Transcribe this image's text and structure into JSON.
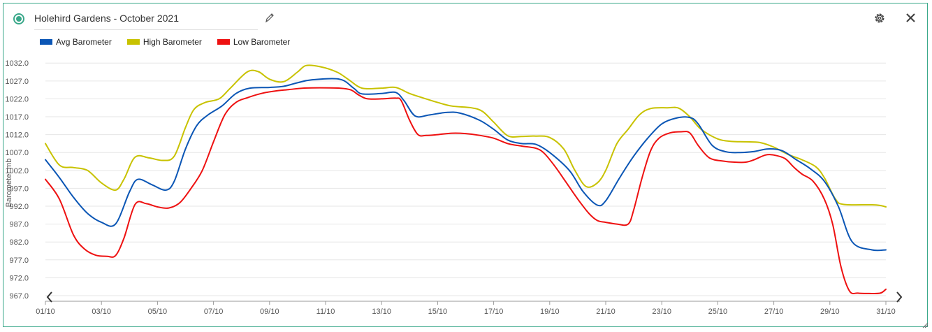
{
  "widget": {
    "title": "Holehird Gardens - October 2021",
    "accent_color": "#3aa88a",
    "icons": [
      "status-dot-icon",
      "pencil-icon",
      "gear-icon",
      "close-icon",
      "chevron-left-icon",
      "chevron-right-icon",
      "resize-grip-icon"
    ]
  },
  "chart_data": {
    "type": "line",
    "title": "",
    "xlabel": "",
    "ylabel": "Barometer mb",
    "ylim": [
      967,
      1034
    ],
    "ytick_labels": [
      "967.0",
      "972.0",
      "977.0",
      "982.0",
      "987.0",
      "992.0",
      "997.0",
      "1002.0",
      "1007.0",
      "1012.0",
      "1017.0",
      "1022.0",
      "1027.0",
      "1032.0"
    ],
    "xtick_labels": [
      "01/10",
      "03/10",
      "05/10",
      "07/10",
      "09/10",
      "11/10",
      "13/10",
      "15/10",
      "17/10",
      "19/10",
      "21/10",
      "23/10",
      "25/10",
      "27/10",
      "29/10",
      "31/10"
    ],
    "grid": true,
    "legend_position": "top-left",
    "series": [
      {
        "name": "Avg Barometer",
        "color": "#0b56b5",
        "points": [
          [
            1,
            1005
          ],
          [
            1.5,
            1000
          ],
          [
            2,
            994.5
          ],
          [
            2.5,
            990
          ],
          [
            3,
            987.5
          ],
          [
            3.5,
            987
          ],
          [
            4,
            996
          ],
          [
            4.3,
            999.5
          ],
          [
            4.8,
            998
          ],
          [
            5.3,
            996.5
          ],
          [
            5.6,
            999
          ],
          [
            6,
            1008
          ],
          [
            6.4,
            1014.5
          ],
          [
            6.8,
            1017.5
          ],
          [
            7.3,
            1020
          ],
          [
            7.8,
            1023.5
          ],
          [
            8.3,
            1025
          ],
          [
            9,
            1025.2
          ],
          [
            9.5,
            1025.5
          ],
          [
            10,
            1026.5
          ],
          [
            10.5,
            1027.3
          ],
          [
            11.5,
            1027.5
          ],
          [
            12,
            1025
          ],
          [
            12.3,
            1023.4
          ],
          [
            13,
            1023.5
          ],
          [
            13.5,
            1023.8
          ],
          [
            13.8,
            1021.5
          ],
          [
            14.2,
            1017.2
          ],
          [
            14.7,
            1017.5
          ],
          [
            15.3,
            1018.2
          ],
          [
            15.8,
            1018
          ],
          [
            16.5,
            1016
          ],
          [
            17,
            1013.5
          ],
          [
            17.5,
            1010.5
          ],
          [
            18,
            1009.5
          ],
          [
            18.5,
            1009.3
          ],
          [
            19,
            1007
          ],
          [
            19.7,
            1002
          ],
          [
            20.2,
            996
          ],
          [
            20.7,
            992.3
          ],
          [
            21,
            993.5
          ],
          [
            21.5,
            1000
          ],
          [
            22,
            1006
          ],
          [
            22.5,
            1011
          ],
          [
            23,
            1015
          ],
          [
            23.5,
            1016.6
          ],
          [
            24,
            1016.8
          ],
          [
            24.3,
            1015
          ],
          [
            24.8,
            1009
          ],
          [
            25.3,
            1007.2
          ],
          [
            25.8,
            1007
          ],
          [
            26.3,
            1007.3
          ],
          [
            26.8,
            1008
          ],
          [
            27.3,
            1007.5
          ],
          [
            27.8,
            1005
          ],
          [
            28.3,
            1002.5
          ],
          [
            28.8,
            999
          ],
          [
            29.3,
            992
          ],
          [
            29.8,
            982
          ],
          [
            30.5,
            979.8
          ],
          [
            31,
            979.8
          ]
        ]
      },
      {
        "name": "High Barometer",
        "color": "#c8c200",
        "points": [
          [
            1,
            1009.5
          ],
          [
            1.5,
            1003.5
          ],
          [
            2,
            1002.8
          ],
          [
            2.5,
            1002
          ],
          [
            3,
            998.5
          ],
          [
            3.5,
            996.5
          ],
          [
            3.8,
            999.5
          ],
          [
            4.2,
            1005.7
          ],
          [
            4.7,
            1005.5
          ],
          [
            5.2,
            1004.8
          ],
          [
            5.6,
            1006
          ],
          [
            6,
            1014
          ],
          [
            6.3,
            1019
          ],
          [
            6.7,
            1021
          ],
          [
            7.2,
            1022
          ],
          [
            7.6,
            1025
          ],
          [
            8.2,
            1029.5
          ],
          [
            8.6,
            1029.6
          ],
          [
            9,
            1027.5
          ],
          [
            9.5,
            1026.8
          ],
          [
            10,
            1029.5
          ],
          [
            10.3,
            1031.3
          ],
          [
            10.8,
            1031
          ],
          [
            11.4,
            1029.5
          ],
          [
            11.8,
            1027.5
          ],
          [
            12.3,
            1025
          ],
          [
            13,
            1025
          ],
          [
            13.5,
            1025.2
          ],
          [
            14,
            1023.5
          ],
          [
            14.5,
            1022.2
          ],
          [
            15,
            1021
          ],
          [
            15.5,
            1020
          ],
          [
            16.2,
            1019.5
          ],
          [
            16.6,
            1018.5
          ],
          [
            17,
            1015.5
          ],
          [
            17.5,
            1011.7
          ],
          [
            18,
            1011.5
          ],
          [
            18.5,
            1011.6
          ],
          [
            19,
            1011.2
          ],
          [
            19.5,
            1008
          ],
          [
            19.9,
            1002
          ],
          [
            20.3,
            997.5
          ],
          [
            20.7,
            998.5
          ],
          [
            21,
            1002
          ],
          [
            21.4,
            1009.5
          ],
          [
            21.8,
            1013.5
          ],
          [
            22.2,
            1017.5
          ],
          [
            22.6,
            1019.3
          ],
          [
            23.2,
            1019.5
          ],
          [
            23.6,
            1019.4
          ],
          [
            24,
            1017
          ],
          [
            24.4,
            1013.5
          ],
          [
            25,
            1010.8
          ],
          [
            25.5,
            1010.1
          ],
          [
            26,
            1010
          ],
          [
            26.5,
            1009.8
          ],
          [
            27,
            1008.5
          ],
          [
            27.5,
            1006.5
          ],
          [
            28,
            1005
          ],
          [
            28.5,
            1003
          ],
          [
            28.8,
            1000
          ],
          [
            29.2,
            994
          ],
          [
            29.5,
            992.5
          ],
          [
            30.5,
            992.4
          ],
          [
            30.8,
            992.2
          ],
          [
            31,
            991.8
          ]
        ]
      },
      {
        "name": "Low Barometer",
        "color": "#ee1111",
        "points": [
          [
            1,
            999.5
          ],
          [
            1.5,
            994
          ],
          [
            2,
            984
          ],
          [
            2.4,
            980
          ],
          [
            2.8,
            978.3
          ],
          [
            3.2,
            978
          ],
          [
            3.5,
            978.2
          ],
          [
            3.8,
            983
          ],
          [
            4.2,
            992.5
          ],
          [
            4.6,
            992.7
          ],
          [
            5,
            991.8
          ],
          [
            5.4,
            991.5
          ],
          [
            5.8,
            993
          ],
          [
            6.2,
            997
          ],
          [
            6.6,
            1002
          ],
          [
            7,
            1010
          ],
          [
            7.4,
            1017.5
          ],
          [
            7.8,
            1021
          ],
          [
            8.2,
            1022.3
          ],
          [
            8.7,
            1023.5
          ],
          [
            9.2,
            1024.2
          ],
          [
            9.7,
            1024.6
          ],
          [
            10.2,
            1025
          ],
          [
            10.8,
            1025.1
          ],
          [
            11.5,
            1025
          ],
          [
            11.9,
            1024.5
          ],
          [
            12.2,
            1023
          ],
          [
            12.5,
            1022
          ],
          [
            13,
            1022
          ],
          [
            13.5,
            1022.2
          ],
          [
            13.7,
            1021.5
          ],
          [
            14,
            1016
          ],
          [
            14.3,
            1012
          ],
          [
            14.6,
            1011.8
          ],
          [
            15,
            1012
          ],
          [
            15.5,
            1012.4
          ],
          [
            16,
            1012.3
          ],
          [
            16.5,
            1011.8
          ],
          [
            17,
            1011
          ],
          [
            17.5,
            1009.5
          ],
          [
            18,
            1008.8
          ],
          [
            18.5,
            1008.2
          ],
          [
            18.8,
            1006.8
          ],
          [
            19.2,
            1003
          ],
          [
            19.6,
            998.5
          ],
          [
            20,
            994
          ],
          [
            20.4,
            990
          ],
          [
            20.7,
            988
          ],
          [
            21,
            987.5
          ],
          [
            21.4,
            987
          ],
          [
            21.8,
            987
          ],
          [
            22,
            991
          ],
          [
            22.3,
            1000
          ],
          [
            22.6,
            1007.5
          ],
          [
            22.9,
            1011
          ],
          [
            23.3,
            1012.5
          ],
          [
            23.7,
            1012.8
          ],
          [
            24,
            1012.5
          ],
          [
            24.3,
            1009
          ],
          [
            24.7,
            1005.5
          ],
          [
            25.2,
            1004.6
          ],
          [
            25.6,
            1004.3
          ],
          [
            26,
            1004.3
          ],
          [
            26.3,
            1005
          ],
          [
            26.7,
            1006.3
          ],
          [
            27,
            1006.3
          ],
          [
            27.4,
            1005.3
          ],
          [
            27.7,
            1003
          ],
          [
            28,
            1001
          ],
          [
            28.4,
            999
          ],
          [
            28.8,
            994
          ],
          [
            29.1,
            987
          ],
          [
            29.4,
            975
          ],
          [
            29.7,
            968.3
          ],
          [
            30,
            967.7
          ],
          [
            30.4,
            967.6
          ],
          [
            30.8,
            967.7
          ],
          [
            31,
            968.8
          ]
        ]
      }
    ]
  }
}
